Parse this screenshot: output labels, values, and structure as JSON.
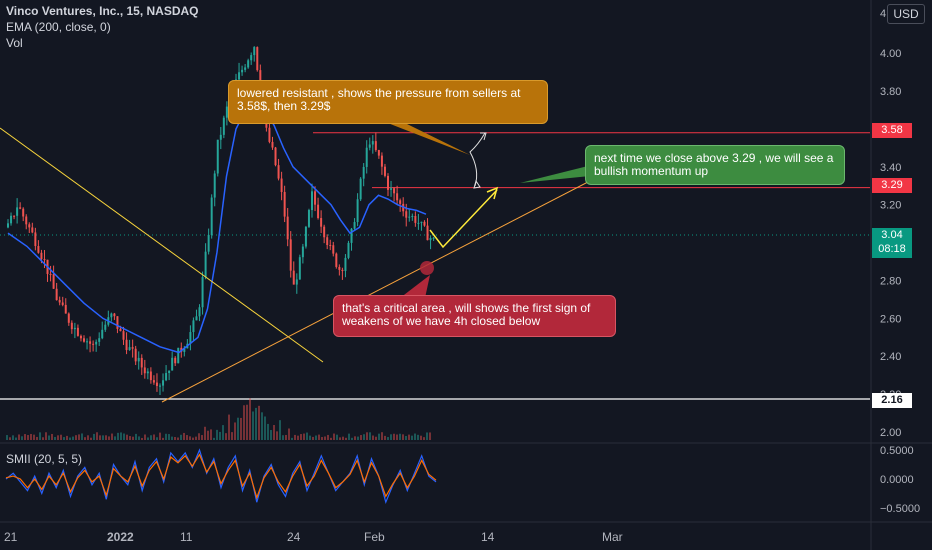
{
  "header": {
    "symbol": "Vinco Ventures, Inc., 15, NASDAQ",
    "ema_label": "EMA (200, close, 0)",
    "vol_label": "Vol",
    "currency": "USD",
    "oscillator_label": "SMII (20, 5, 5)"
  },
  "price_tags": {
    "level_high": "3.58",
    "level_mid": "3.29",
    "last_price": "3.04",
    "countdown": "08:18",
    "low_line": "2.16"
  },
  "notes": {
    "orange": "lowered resistant , shows the pressure from sellers at 3.58$, then 3.29$",
    "green": "next time we close above 3.29 , we will see a bullish momentum up",
    "red": "that's a critical area , will shows the first sign of weakens of we have 4h closed below"
  },
  "colors": {
    "background": "#131722",
    "ema": "#2962ff",
    "bull": "#26a69a",
    "bear": "#ef5350",
    "level": "#f23645",
    "trendline": "#f7d43c",
    "smii_fast": "#2962ff",
    "smii_slow": "#ff6d00"
  },
  "chart_data": [
    {
      "type": "candlestick",
      "title": "Vinco Ventures, Inc., 15, NASDAQ",
      "x_ticks": [
        "21",
        "2022",
        "11",
        "24",
        "Feb",
        "14",
        "Mar"
      ],
      "y_ticks": [
        4.0,
        3.8,
        3.6,
        3.4,
        3.2,
        3.0,
        2.8,
        2.6,
        2.4,
        2.2,
        2.0
      ],
      "y_tick_labels": [
        "4.00",
        "3.80",
        "3.60",
        "3.40",
        "3.20",
        "3.00",
        "2.80",
        "2.60",
        "2.40",
        "2.20",
        "2.00"
      ],
      "ylim": [
        2.0,
        4.08
      ],
      "price_path": [
        {
          "x": 0.0,
          "y": 3.08
        },
        {
          "x": 0.5,
          "y": 3.2
        },
        {
          "x": 1.0,
          "y": 3.1
        },
        {
          "x": 1.5,
          "y": 3.0
        },
        {
          "x": 2.0,
          "y": 2.88
        },
        {
          "x": 2.5,
          "y": 2.72
        },
        {
          "x": 3.0,
          "y": 2.62
        },
        {
          "x": 3.5,
          "y": 2.55
        },
        {
          "x": 4.0,
          "y": 2.5
        },
        {
          "x": 4.5,
          "y": 2.45
        },
        {
          "x": 5.0,
          "y": 2.55
        },
        {
          "x": 5.5,
          "y": 2.62
        },
        {
          "x": 6.0,
          "y": 2.5
        },
        {
          "x": 6.5,
          "y": 2.42
        },
        {
          "x": 7.0,
          "y": 2.35
        },
        {
          "x": 7.5,
          "y": 2.3
        },
        {
          "x": 8.0,
          "y": 2.26
        },
        {
          "x": 8.5,
          "y": 2.35
        },
        {
          "x": 9.0,
          "y": 2.42
        },
        {
          "x": 9.5,
          "y": 2.5
        },
        {
          "x": 10.0,
          "y": 2.62
        },
        {
          "x": 10.5,
          "y": 3.0
        },
        {
          "x": 11.0,
          "y": 3.5
        },
        {
          "x": 11.5,
          "y": 3.7
        },
        {
          "x": 12.0,
          "y": 3.85
        },
        {
          "x": 12.5,
          "y": 3.95
        },
        {
          "x": 13.0,
          "y": 4.05
        },
        {
          "x": 13.3,
          "y": 3.75
        },
        {
          "x": 13.5,
          "y": 3.62
        },
        {
          "x": 14.0,
          "y": 3.45
        },
        {
          "x": 14.5,
          "y": 3.2
        },
        {
          "x": 15.0,
          "y": 2.75
        },
        {
          "x": 15.5,
          "y": 2.95
        },
        {
          "x": 16.0,
          "y": 3.25
        },
        {
          "x": 16.5,
          "y": 3.1
        },
        {
          "x": 17.0,
          "y": 2.95
        },
        {
          "x": 17.5,
          "y": 2.85
        },
        {
          "x": 18.0,
          "y": 3.0
        },
        {
          "x": 18.5,
          "y": 3.28
        },
        {
          "x": 19.0,
          "y": 3.55
        },
        {
          "x": 19.5,
          "y": 3.45
        },
        {
          "x": 20.0,
          "y": 3.3
        },
        {
          "x": 20.5,
          "y": 3.22
        },
        {
          "x": 21.0,
          "y": 3.15
        },
        {
          "x": 21.5,
          "y": 3.12
        },
        {
          "x": 22.0,
          "y": 3.05
        },
        {
          "x": 22.5,
          "y": 3.0
        }
      ],
      "ema_200": [
        {
          "x": 0.0,
          "y": 3.05
        },
        {
          "x": 1.0,
          "y": 2.98
        },
        {
          "x": 2.0,
          "y": 2.88
        },
        {
          "x": 3.0,
          "y": 2.78
        },
        {
          "x": 4.0,
          "y": 2.68
        },
        {
          "x": 5.0,
          "y": 2.6
        },
        {
          "x": 6.0,
          "y": 2.55
        },
        {
          "x": 7.0,
          "y": 2.5
        },
        {
          "x": 8.0,
          "y": 2.45
        },
        {
          "x": 9.0,
          "y": 2.42
        },
        {
          "x": 10.0,
          "y": 2.5
        },
        {
          "x": 10.5,
          "y": 2.65
        },
        {
          "x": 11.0,
          "y": 2.95
        },
        {
          "x": 11.5,
          "y": 3.35
        },
        {
          "x": 12.0,
          "y": 3.6
        },
        {
          "x": 12.5,
          "y": 3.7
        },
        {
          "x": 13.0,
          "y": 3.72
        },
        {
          "x": 13.5,
          "y": 3.7
        },
        {
          "x": 14.0,
          "y": 3.62
        },
        {
          "x": 14.5,
          "y": 3.5
        },
        {
          "x": 15.0,
          "y": 3.4
        },
        {
          "x": 15.5,
          "y": 3.35
        },
        {
          "x": 16.0,
          "y": 3.3
        },
        {
          "x": 16.5,
          "y": 3.25
        },
        {
          "x": 17.0,
          "y": 3.2
        },
        {
          "x": 17.5,
          "y": 3.12
        },
        {
          "x": 18.0,
          "y": 3.05
        },
        {
          "x": 18.5,
          "y": 3.08
        },
        {
          "x": 19.0,
          "y": 3.2
        },
        {
          "x": 19.5,
          "y": 3.25
        },
        {
          "x": 20.0,
          "y": 3.23
        },
        {
          "x": 20.5,
          "y": 3.2
        },
        {
          "x": 21.0,
          "y": 3.18
        },
        {
          "x": 21.5,
          "y": 3.17
        },
        {
          "x": 22.0,
          "y": 3.15
        }
      ],
      "levels": [
        {
          "value": 3.58,
          "label": "3.58"
        },
        {
          "value": 3.29,
          "label": "3.29"
        },
        {
          "value": 3.04,
          "label": "3.04"
        },
        {
          "value": 2.16,
          "label": "2.16"
        }
      ]
    },
    {
      "type": "line",
      "title": "SMII (20, 5, 5)",
      "y_ticks": [
        0.5,
        0.0,
        -0.5
      ],
      "y_tick_labels": [
        "0.5000",
        "0.0000",
        "−0.5000"
      ],
      "ylim": [
        -0.62,
        0.55
      ],
      "series": [
        {
          "values": [
            0.0,
            0.1,
            -0.05,
            -0.2,
            0.05,
            -0.25,
            0.1,
            -0.15,
            0.15,
            -0.3,
            0.05,
            0.2,
            -0.1,
            0.1,
            -0.35,
            0.25,
            0.05,
            -0.1,
            0.3,
            -0.2,
            0.2,
            0.35,
            -0.05,
            0.45,
            0.3,
            0.45,
            0.2,
            0.5,
            0.1,
            0.35,
            -0.15,
            0.2,
            0.4,
            -0.2,
            0.15,
            -0.4,
            0.05,
            0.25,
            -0.1,
            -0.3,
            0.1,
            0.3,
            -0.2,
            0.1,
            0.4,
            0.1,
            -0.2,
            -0.05,
            0.1,
            0.4,
            -0.1,
            0.35,
            0.05,
            -0.4,
            -0.1,
            0.15,
            -0.2,
            0.1,
            0.4,
            0.05,
            -0.05
          ]
        },
        {
          "values": [
            0.02,
            0.05,
            0.0,
            -0.15,
            0.0,
            -0.18,
            0.05,
            -0.1,
            0.1,
            -0.22,
            0.02,
            0.15,
            -0.05,
            0.05,
            -0.28,
            0.18,
            0.05,
            -0.05,
            0.22,
            -0.12,
            0.15,
            0.3,
            0.0,
            0.38,
            0.28,
            0.4,
            0.22,
            0.42,
            0.12,
            0.3,
            -0.08,
            0.15,
            0.32,
            -0.12,
            0.1,
            -0.32,
            0.02,
            0.2,
            -0.05,
            -0.22,
            0.05,
            0.25,
            -0.12,
            0.05,
            0.32,
            0.1,
            -0.15,
            -0.05,
            0.08,
            0.32,
            -0.05,
            0.28,
            0.05,
            -0.3,
            -0.08,
            0.1,
            -0.15,
            0.05,
            0.32,
            0.08,
            -0.02
          ]
        }
      ]
    }
  ]
}
